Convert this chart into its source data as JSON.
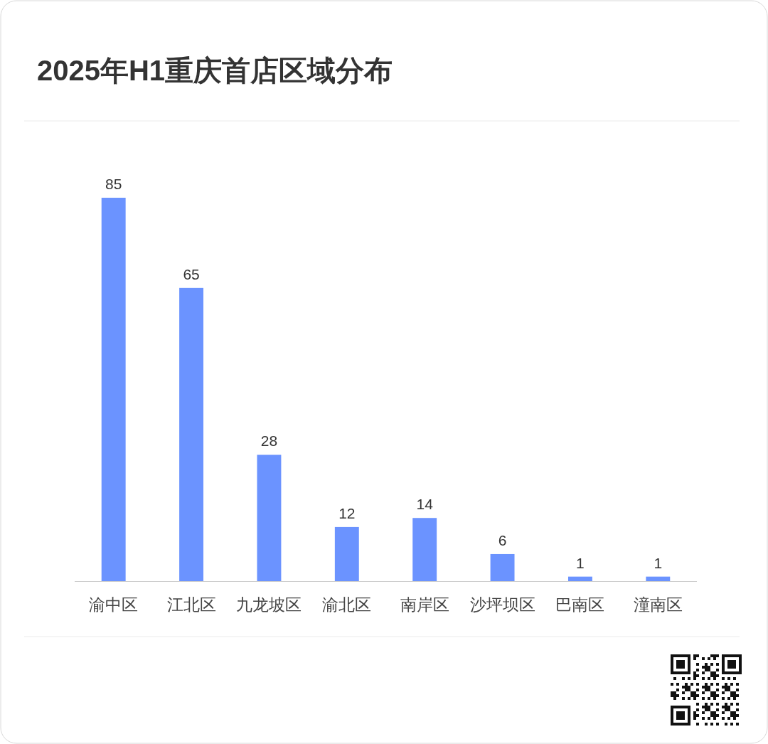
{
  "chart_data": {
    "type": "bar",
    "title": "2025年H1重庆首店区域分布",
    "categories": [
      "渝中区",
      "江北区",
      "九龙坡区",
      "渝北区",
      "南岸区",
      "沙坪坝区",
      "巴南区",
      "潼南区"
    ],
    "values": [
      85,
      65,
      28,
      12,
      14,
      6,
      1,
      1
    ],
    "color": "#6b93ff",
    "data_labels": true,
    "relative": false
  }
}
